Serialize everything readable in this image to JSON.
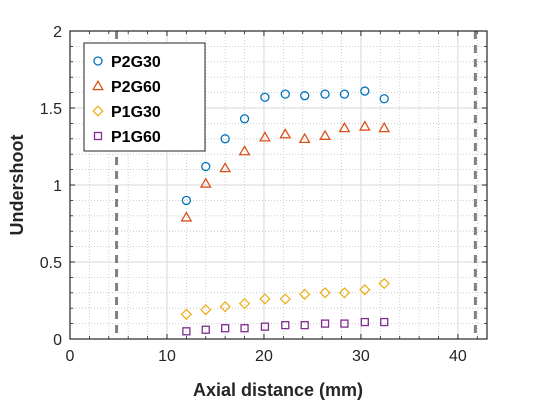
{
  "chart_data": {
    "type": "scatter",
    "xlabel": "Axial distance (mm)",
    "ylabel": "Undershoot",
    "xlim": [
      0,
      43
    ],
    "ylim": [
      0,
      2
    ],
    "xticks": [
      0,
      10,
      20,
      30,
      40
    ],
    "yticks": [
      0,
      0.5,
      1,
      1.5,
      2
    ],
    "xtick_labels": [
      "0",
      "10",
      "20",
      "30",
      "40"
    ],
    "ytick_labels": [
      "0",
      "0.5",
      "1",
      "1.5",
      "2"
    ],
    "grid": "major solid, minor dotted",
    "legend_position": "top-left",
    "reference_lines_x": [
      4.8,
      41.8
    ],
    "series": [
      {
        "name": "P2G30",
        "marker": "circle",
        "color": "#0072BD",
        "x": [
          12,
          14,
          16,
          18,
          20.1,
          22.2,
          24.2,
          26.3,
          28.3,
          30.4,
          32.4
        ],
        "y": [
          0.9,
          1.12,
          1.3,
          1.43,
          1.57,
          1.59,
          1.58,
          1.59,
          1.59,
          1.61,
          1.56
        ]
      },
      {
        "name": "P2G60",
        "marker": "triangle",
        "color": "#D95319",
        "x": [
          12,
          14,
          16,
          18,
          20.1,
          22.2,
          24.2,
          26.3,
          28.3,
          30.4,
          32.4
        ],
        "y": [
          0.79,
          1.01,
          1.11,
          1.22,
          1.31,
          1.33,
          1.3,
          1.32,
          1.37,
          1.38,
          1.37
        ]
      },
      {
        "name": "P1G30",
        "marker": "diamond",
        "color": "#EDB120",
        "x": [
          12,
          14,
          16,
          18,
          20.1,
          22.2,
          24.2,
          26.3,
          28.3,
          30.4,
          32.4
        ],
        "y": [
          0.16,
          0.19,
          0.21,
          0.23,
          0.26,
          0.26,
          0.29,
          0.3,
          0.3,
          0.32,
          0.36
        ]
      },
      {
        "name": "P1G60",
        "marker": "square",
        "color": "#7E2F8E",
        "x": [
          12,
          14,
          16,
          18,
          20.1,
          22.2,
          24.2,
          26.3,
          28.3,
          30.4,
          32.4
        ],
        "y": [
          0.05,
          0.06,
          0.07,
          0.07,
          0.08,
          0.09,
          0.09,
          0.1,
          0.1,
          0.11,
          0.11
        ]
      }
    ]
  }
}
